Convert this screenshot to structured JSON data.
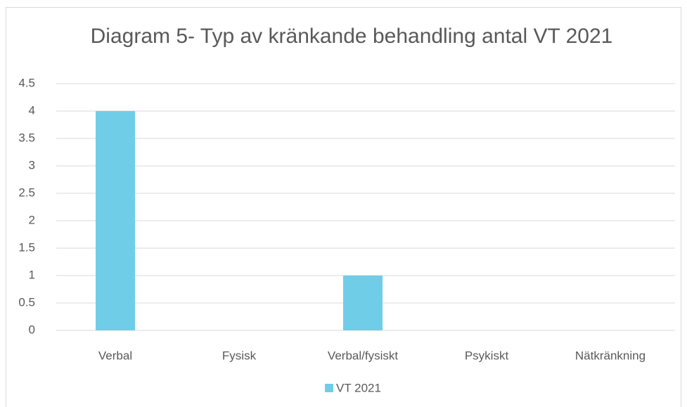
{
  "chart_data": {
    "type": "bar",
    "title": "Diagram 5- Typ av kränkande behandling antal VT 2021",
    "categories": [
      "Verbal",
      "Fysisk",
      "Verbal/fysiskt",
      "Psykiskt",
      "Nätkränkning"
    ],
    "series": [
      {
        "name": "VT 2021",
        "color": "#70cde8",
        "values": [
          4,
          0,
          1,
          0,
          0
        ]
      }
    ],
    "ylim": [
      0,
      4.5
    ],
    "yticks": [
      0,
      0.5,
      1,
      1.5,
      2,
      2.5,
      3,
      3.5,
      4,
      4.5
    ],
    "grid": true,
    "legend": "bottom"
  }
}
